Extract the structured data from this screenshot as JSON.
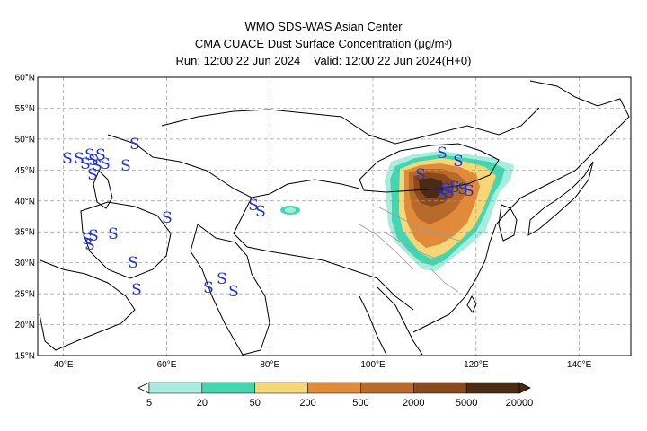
{
  "header": {
    "line1": "WMO SDS-WAS Asian Center",
    "line2": "CMA CUACE Dust Surface Concentration (μg/m³)",
    "line3_run": "Run: 12:00 22 Jun 2024",
    "line3_valid": "Valid: 12:00 22 Jun 2024(H+0)"
  },
  "map": {
    "lon_range": [
      35,
      150
    ],
    "lat_range": [
      15,
      60
    ],
    "lat_ticks": [
      "15°N",
      "20°N",
      "25°N",
      "30°N",
      "35°N",
      "40°N",
      "45°N",
      "50°N",
      "55°N",
      "60°N"
    ],
    "lon_ticks": [
      "40°E",
      "60°E",
      "80°E",
      "100°E",
      "120°E",
      "140°E"
    ],
    "grid": "dashed",
    "dust_symbol": "S",
    "dust_symbol_color": "#2233cc"
  },
  "colorbar": {
    "levels": [
      "5",
      "20",
      "50",
      "200",
      "500",
      "2000",
      "5000",
      "20000"
    ],
    "colors": [
      "#a8ece0",
      "#44d6b0",
      "#f5d678",
      "#e08a3a",
      "#b86a2a",
      "#8a4a1e",
      "#4a2a12"
    ]
  }
}
